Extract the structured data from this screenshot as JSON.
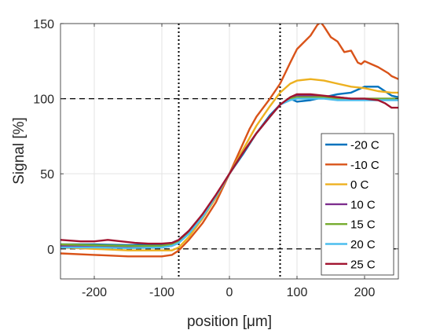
{
  "chart_data": {
    "type": "line",
    "title": "",
    "xlabel": "position [μm]",
    "ylabel": "Signal [%]",
    "xlim": [
      -250,
      250
    ],
    "ylim": [
      -20,
      150
    ],
    "xticks": [
      -200,
      -100,
      0,
      100,
      200
    ],
    "yticks": [
      0,
      50,
      100,
      150
    ],
    "grid": true,
    "legend_location": "lower-right",
    "reference_lines": [
      {
        "orientation": "horizontal",
        "value": 0,
        "style": "dashed",
        "color": "#000000"
      },
      {
        "orientation": "horizontal",
        "value": 100,
        "style": "dashed",
        "color": "#000000"
      },
      {
        "orientation": "vertical",
        "value": -75,
        "style": "dotted",
        "color": "#000000"
      },
      {
        "orientation": "vertical",
        "value": 75,
        "style": "dotted",
        "color": "#000000"
      }
    ],
    "series": [
      {
        "name": "-20 C",
        "color": "#0072BD",
        "points": [
          [
            -250,
            3
          ],
          [
            -200,
            3
          ],
          [
            -150,
            2.5
          ],
          [
            -100,
            3
          ],
          [
            -85,
            4
          ],
          [
            -75,
            6
          ],
          [
            -60,
            12
          ],
          [
            -40,
            22
          ],
          [
            -20,
            35
          ],
          [
            0,
            50
          ],
          [
            20,
            63
          ],
          [
            40,
            77
          ],
          [
            60,
            89
          ],
          [
            75,
            96
          ],
          [
            90,
            100
          ],
          [
            100,
            98
          ],
          [
            120,
            99
          ],
          [
            140,
            101
          ],
          [
            160,
            103
          ],
          [
            180,
            104
          ],
          [
            200,
            108
          ],
          [
            220,
            108
          ],
          [
            240,
            102
          ],
          [
            250,
            101
          ]
        ]
      },
      {
        "name": "-10 C",
        "color": "#D95319",
        "points": [
          [
            -250,
            -3
          ],
          [
            -200,
            -4
          ],
          [
            -150,
            -5
          ],
          [
            -100,
            -5
          ],
          [
            -85,
            -4
          ],
          [
            -75,
            -1
          ],
          [
            -60,
            6
          ],
          [
            -40,
            17
          ],
          [
            -20,
            31
          ],
          [
            0,
            50
          ],
          [
            20,
            70
          ],
          [
            30,
            80
          ],
          [
            40,
            88
          ],
          [
            60,
            100
          ],
          [
            75,
            110
          ],
          [
            90,
            124
          ],
          [
            100,
            133
          ],
          [
            120,
            142
          ],
          [
            130,
            149
          ],
          [
            135,
            151
          ],
          [
            140,
            148
          ],
          [
            150,
            141
          ],
          [
            160,
            138
          ],
          [
            170,
            131
          ],
          [
            180,
            132
          ],
          [
            190,
            124
          ],
          [
            195,
            123
          ],
          [
            200,
            125
          ],
          [
            210,
            123
          ],
          [
            220,
            121
          ],
          [
            235,
            117
          ],
          [
            240,
            115
          ],
          [
            250,
            113
          ]
        ]
      },
      {
        "name": "0 C",
        "color": "#EDB120",
        "points": [
          [
            -250,
            1
          ],
          [
            -200,
            0
          ],
          [
            -150,
            -1
          ],
          [
            -100,
            -1
          ],
          [
            -85,
            -1
          ],
          [
            -75,
            1
          ],
          [
            -60,
            8
          ],
          [
            -40,
            20
          ],
          [
            -20,
            34
          ],
          [
            0,
            50
          ],
          [
            20,
            66
          ],
          [
            40,
            82
          ],
          [
            60,
            95
          ],
          [
            75,
            104
          ],
          [
            90,
            110
          ],
          [
            100,
            112
          ],
          [
            120,
            113
          ],
          [
            140,
            112
          ],
          [
            160,
            110
          ],
          [
            180,
            108
          ],
          [
            200,
            107
          ],
          [
            220,
            105
          ],
          [
            240,
            104
          ],
          [
            250,
            104
          ]
        ]
      },
      {
        "name": "10 C",
        "color": "#7E2F8E",
        "points": [
          [
            -250,
            2
          ],
          [
            -200,
            1.5
          ],
          [
            -150,
            1
          ],
          [
            -100,
            1
          ],
          [
            -85,
            2
          ],
          [
            -75,
            4
          ],
          [
            -60,
            11
          ],
          [
            -40,
            22
          ],
          [
            -20,
            35
          ],
          [
            0,
            50
          ],
          [
            20,
            64
          ],
          [
            40,
            77
          ],
          [
            60,
            88
          ],
          [
            75,
            96
          ],
          [
            90,
            100
          ],
          [
            100,
            102
          ],
          [
            120,
            102
          ],
          [
            140,
            101
          ],
          [
            160,
            101
          ],
          [
            180,
            100
          ],
          [
            200,
            100
          ],
          [
            220,
            100
          ],
          [
            240,
            100
          ],
          [
            250,
            100
          ]
        ]
      },
      {
        "name": "15 C",
        "color": "#77AC30",
        "points": [
          [
            -250,
            3
          ],
          [
            -200,
            2.5
          ],
          [
            -150,
            2
          ],
          [
            -100,
            2
          ],
          [
            -85,
            3
          ],
          [
            -75,
            5
          ],
          [
            -60,
            11
          ],
          [
            -40,
            22
          ],
          [
            -20,
            35
          ],
          [
            0,
            50
          ],
          [
            20,
            64
          ],
          [
            40,
            77
          ],
          [
            60,
            88
          ],
          [
            75,
            96
          ],
          [
            90,
            100
          ],
          [
            100,
            101
          ],
          [
            120,
            101
          ],
          [
            140,
            101
          ],
          [
            160,
            100
          ],
          [
            180,
            100
          ],
          [
            200,
            100
          ],
          [
            220,
            100
          ],
          [
            240,
            100
          ],
          [
            250,
            100
          ]
        ]
      },
      {
        "name": "20 C",
        "color": "#4DBEEE",
        "points": [
          [
            -250,
            1
          ],
          [
            -200,
            1
          ],
          [
            -150,
            0.5
          ],
          [
            -100,
            1
          ],
          [
            -85,
            2
          ],
          [
            -75,
            4
          ],
          [
            -60,
            10
          ],
          [
            -40,
            21
          ],
          [
            -20,
            35
          ],
          [
            0,
            50
          ],
          [
            20,
            64
          ],
          [
            40,
            77
          ],
          [
            60,
            88
          ],
          [
            75,
            96
          ],
          [
            90,
            99
          ],
          [
            100,
            100
          ],
          [
            120,
            100
          ],
          [
            140,
            100
          ],
          [
            160,
            99
          ],
          [
            180,
            99
          ],
          [
            200,
            99
          ],
          [
            220,
            99
          ],
          [
            240,
            99
          ],
          [
            250,
            99
          ]
        ]
      },
      {
        "name": "25 C",
        "color": "#A2142F",
        "points": [
          [
            -250,
            6
          ],
          [
            -220,
            5
          ],
          [
            -200,
            5
          ],
          [
            -180,
            6
          ],
          [
            -160,
            5
          ],
          [
            -140,
            4
          ],
          [
            -120,
            3.5
          ],
          [
            -100,
            3.5
          ],
          [
            -85,
            4
          ],
          [
            -75,
            6
          ],
          [
            -60,
            12
          ],
          [
            -40,
            23
          ],
          [
            -20,
            36
          ],
          [
            0,
            50
          ],
          [
            20,
            64
          ],
          [
            40,
            77
          ],
          [
            60,
            88
          ],
          [
            75,
            96
          ],
          [
            90,
            101
          ],
          [
            100,
            103
          ],
          [
            120,
            103
          ],
          [
            140,
            102
          ],
          [
            160,
            101
          ],
          [
            180,
            100
          ],
          [
            200,
            100
          ],
          [
            220,
            99
          ],
          [
            230,
            97
          ],
          [
            240,
            94
          ],
          [
            250,
            94
          ]
        ]
      }
    ]
  }
}
